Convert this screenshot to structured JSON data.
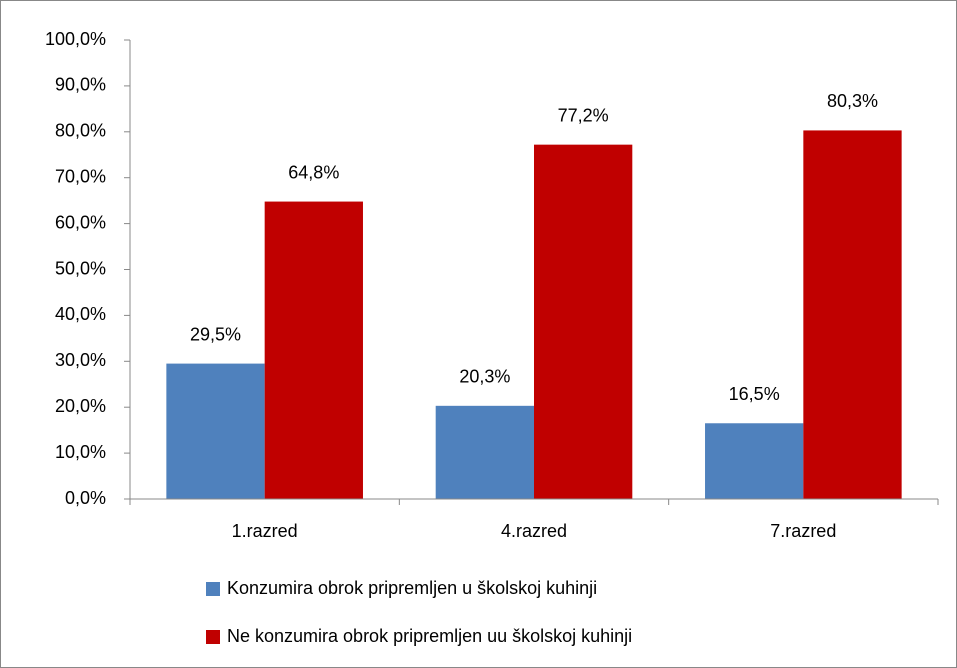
{
  "chart_data": {
    "type": "bar",
    "categories": [
      "1.razred",
      "4.razred",
      "7.razred"
    ],
    "series": [
      {
        "name": "Konzumira obrok pripremljen u školskoj kuhinji",
        "color": "#4f81bd",
        "values": [
          29.5,
          20.3,
          16.5
        ],
        "value_labels": [
          "29,5%",
          "20,3%",
          "16,5%"
        ]
      },
      {
        "name": "Ne konzumira obrok pripremljen uu školskoj kuhinji",
        "color": "#c00000",
        "values": [
          64.8,
          77.2,
          80.3
        ],
        "value_labels": [
          "64,8%",
          "77,2%",
          "80,3%"
        ]
      }
    ],
    "ylim": [
      0,
      100
    ],
    "yticks": [
      {
        "value": 0,
        "label": "0,0%"
      },
      {
        "value": 10,
        "label": "10,0%"
      },
      {
        "value": 20,
        "label": "20,0%"
      },
      {
        "value": 30,
        "label": "30,0%"
      },
      {
        "value": 40,
        "label": "40,0%"
      },
      {
        "value": 50,
        "label": "50,0%"
      },
      {
        "value": 60,
        "label": "60,0%"
      },
      {
        "value": 70,
        "label": "70,0%"
      },
      {
        "value": 80,
        "label": "80,0%"
      },
      {
        "value": 90,
        "label": "90,0%"
      },
      {
        "value": 100,
        "label": "100,0%"
      }
    ],
    "grid": false,
    "legend": "bottom"
  }
}
